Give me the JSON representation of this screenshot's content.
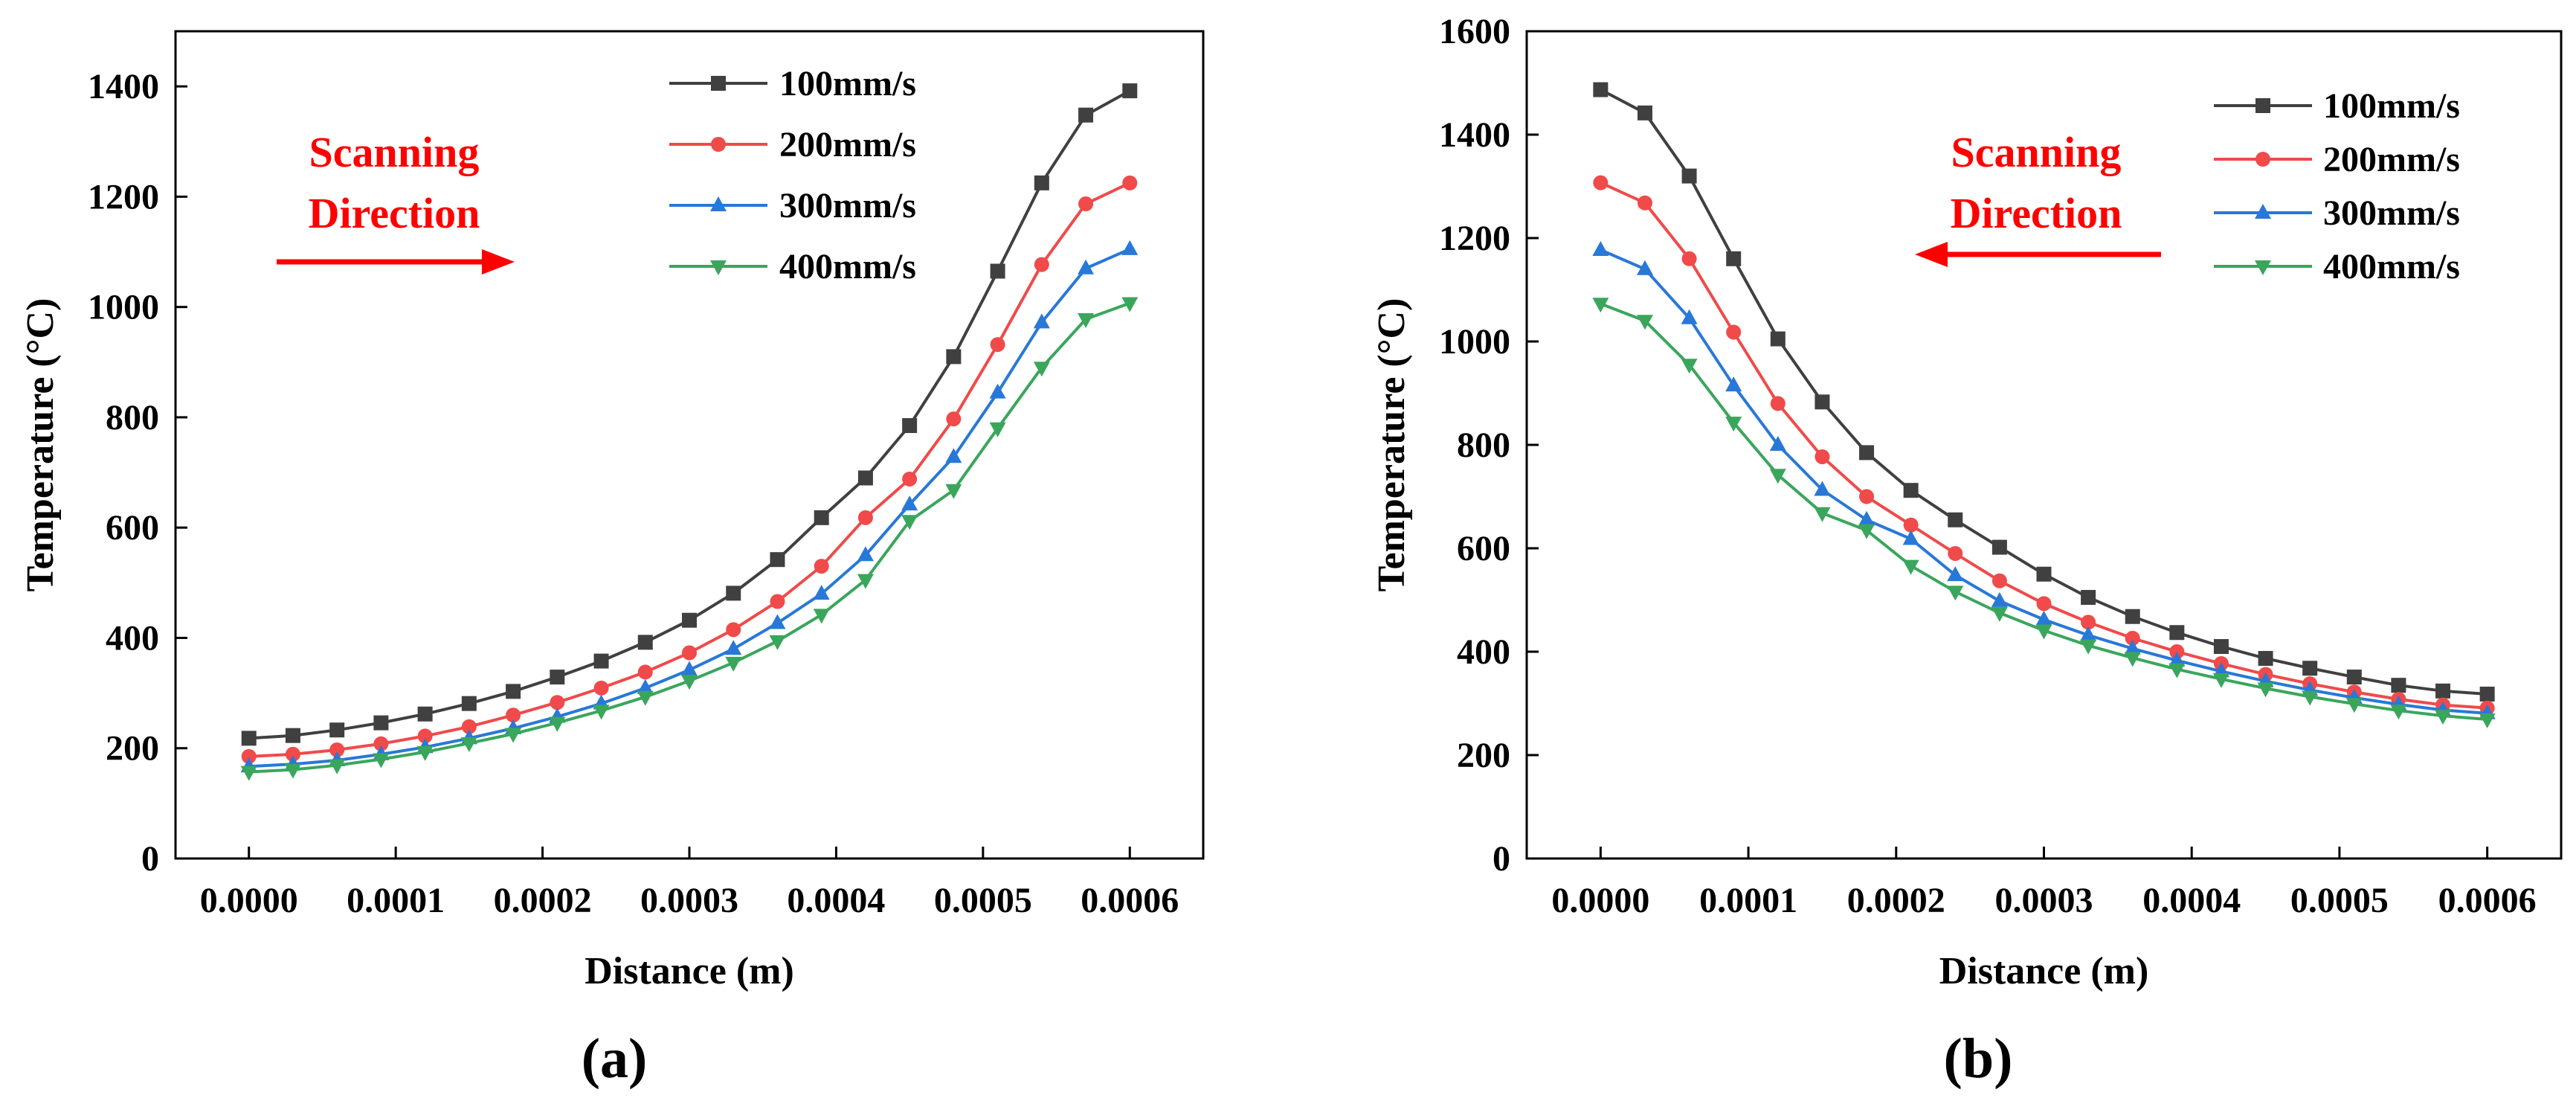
{
  "figure": {
    "panel_a_label": "(a)",
    "panel_b_label": "(b)"
  },
  "series_colors": [
    "#404040",
    "#f04a4a",
    "#2878d8",
    "#3aa65c"
  ],
  "arrow_color": "#ff0000",
  "chart_data": [
    {
      "type": "line",
      "panel": "a",
      "title": "",
      "xlabel": "Distance (m)",
      "ylabel": "Temperature (°C)",
      "xlim": [
        -5e-05,
        0.00065
      ],
      "ylim": [
        0,
        1500
      ],
      "xticks": [
        0,
        0.0001,
        0.0002,
        0.0003,
        0.0004,
        0.0005,
        0.0006
      ],
      "xtick_labels": [
        "0.0000",
        "0.0001",
        "0.0002",
        "0.0003",
        "0.0004",
        "0.0005",
        "0.0006"
      ],
      "yticks": [
        0,
        200,
        400,
        600,
        800,
        1000,
        1200,
        1400
      ],
      "ytick_labels": [
        "0",
        "200",
        "400",
        "600",
        "800",
        "1000",
        "1200",
        "1400"
      ],
      "annotation": {
        "line1": "Scanning",
        "line2": "Direction",
        "arrow": "right"
      },
      "legend_position": "top-right",
      "x": [
        0,
        3e-05,
        6e-05,
        9e-05,
        0.00012,
        0.00015,
        0.00018,
        0.00021,
        0.00024,
        0.00027,
        0.0003,
        0.00033,
        0.00036,
        0.00039,
        0.00042,
        0.00045,
        0.00048,
        0.00051,
        0.00054,
        0.00057,
        0.0006
      ],
      "series": [
        {
          "name": "100mm/s",
          "marker": "square",
          "values": [
            218,
            223,
            233,
            246,
            262,
            281,
            303,
            329,
            358,
            392,
            432,
            481,
            542,
            618,
            690,
            785,
            910,
            1065,
            1225,
            1348,
            1392
          ]
        },
        {
          "name": "200mm/s",
          "marker": "circle",
          "values": [
            185,
            189,
            197,
            208,
            222,
            239,
            260,
            283,
            309,
            338,
            373,
            415,
            466,
            530,
            618,
            688,
            797,
            932,
            1077,
            1187,
            1225
          ]
        },
        {
          "name": "300mm/s",
          "marker": "triangle-up",
          "values": [
            167,
            171,
            178,
            189,
            202,
            218,
            236,
            257,
            281,
            309,
            342,
            380,
            427,
            480,
            550,
            642,
            728,
            845,
            972,
            1070,
            1105
          ]
        },
        {
          "name": "400mm/s",
          "marker": "triangle-down",
          "values": [
            157,
            161,
            169,
            180,
            193,
            209,
            226,
            246,
            268,
            293,
            322,
            355,
            394,
            442,
            505,
            612,
            668,
            780,
            890,
            978,
            1007
          ]
        }
      ]
    },
    {
      "type": "line",
      "panel": "b",
      "title": "",
      "xlabel": "Distance (m)",
      "ylabel": "Temperature (°C)",
      "xlim": [
        -5e-05,
        0.00065
      ],
      "ylim": [
        0,
        1600
      ],
      "xticks": [
        0,
        0.0001,
        0.0002,
        0.0003,
        0.0004,
        0.0005,
        0.0006
      ],
      "xtick_labels": [
        "0.0000",
        "0.0001",
        "0.0002",
        "0.0003",
        "0.0004",
        "0.0005",
        "0.0006"
      ],
      "yticks": [
        0,
        200,
        400,
        600,
        800,
        1000,
        1200,
        1400,
        1600
      ],
      "ytick_labels": [
        "0",
        "200",
        "400",
        "600",
        "800",
        "1000",
        "1200",
        "1400",
        "1600"
      ],
      "annotation": {
        "line1": "Scanning",
        "line2": "Direction",
        "arrow": "left"
      },
      "legend_position": "top-right",
      "x": [
        0,
        3e-05,
        6e-05,
        9e-05,
        0.00012,
        0.00015,
        0.00018,
        0.00021,
        0.00024,
        0.00027,
        0.0003,
        0.00033,
        0.00036,
        0.00039,
        0.00042,
        0.00045,
        0.00048,
        0.00051,
        0.00054,
        0.00057,
        0.0006
      ],
      "series": [
        {
          "name": "100mm/s",
          "marker": "square",
          "values": [
            1487,
            1442,
            1320,
            1160,
            1005,
            883,
            785,
            712,
            655,
            602,
            550,
            505,
            468,
            437,
            410,
            387,
            368,
            351,
            335,
            324,
            318
          ]
        },
        {
          "name": "200mm/s",
          "marker": "circle",
          "values": [
            1307,
            1268,
            1160,
            1018,
            880,
            777,
            700,
            645,
            590,
            537,
            493,
            457,
            426,
            400,
            377,
            356,
            338,
            322,
            308,
            297,
            291
          ]
        },
        {
          "name": "300mm/s",
          "marker": "triangle-up",
          "values": [
            1177,
            1140,
            1045,
            915,
            800,
            713,
            655,
            618,
            548,
            498,
            462,
            432,
            406,
            383,
            362,
            343,
            326,
            311,
            298,
            287,
            281
          ]
        },
        {
          "name": "400mm/s",
          "marker": "triangle-down",
          "values": [
            1073,
            1040,
            955,
            843,
            742,
            668,
            635,
            566,
            516,
            475,
            441,
            412,
            388,
            366,
            347,
            329,
            313,
            299,
            286,
            276,
            269
          ]
        }
      ]
    }
  ]
}
